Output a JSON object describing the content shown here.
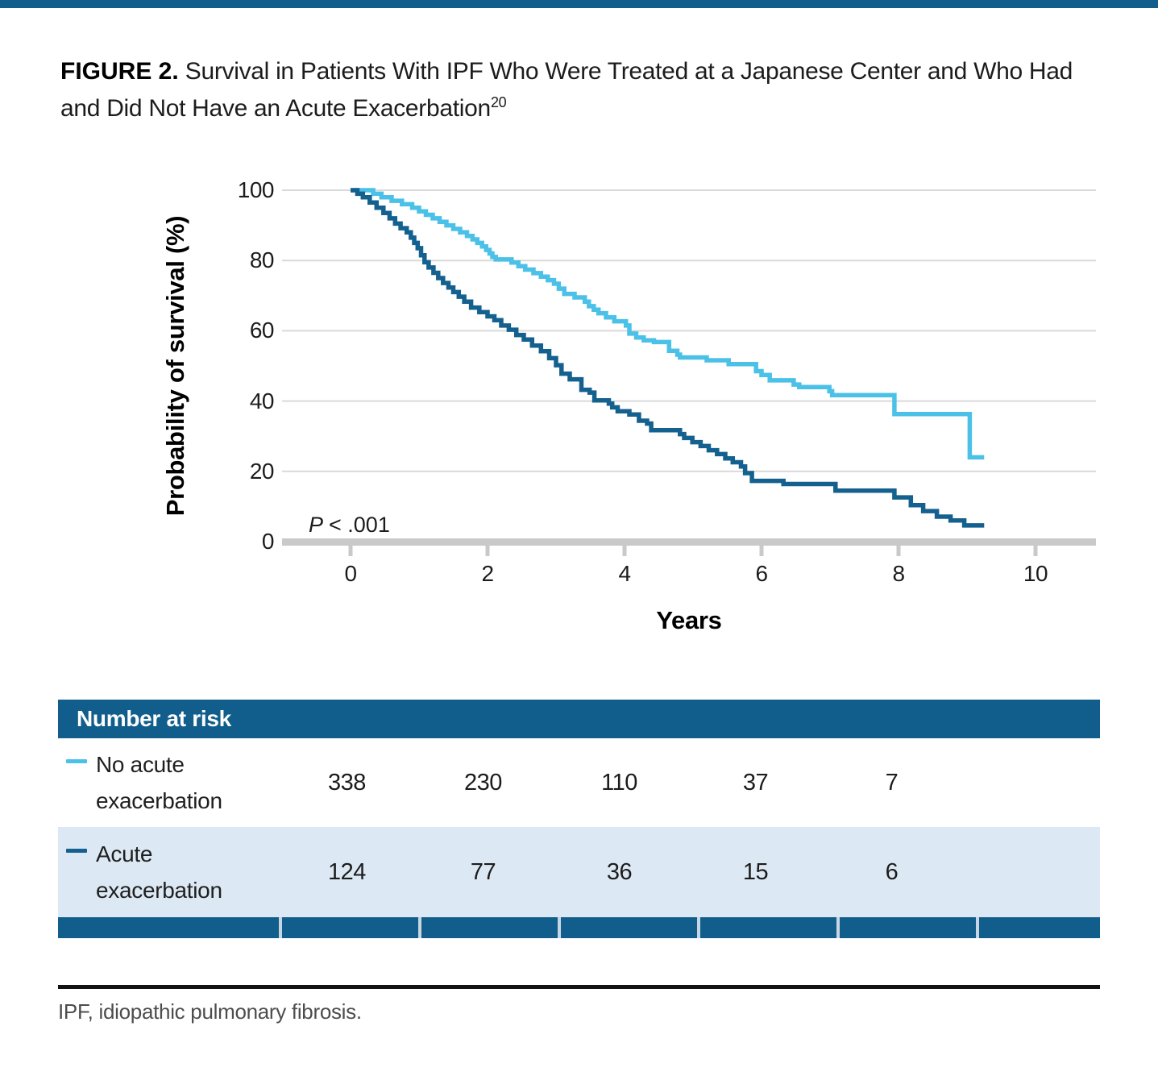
{
  "accent_color": "#115E8C",
  "title": {
    "label": "FIGURE 2.",
    "text": " Survival in Patients With IPF Who Were Treated at a Japanese Center and Who Had and Did Not Have an Acute Exacerbation",
    "reference": "20"
  },
  "chart_data": {
    "type": "line",
    "subtype": "kaplan-meier-step",
    "xlabel": "Years",
    "ylabel": "Probability of survival (%)",
    "xlim": [
      0,
      11
    ],
    "ylim": [
      0,
      100
    ],
    "x_ticks": [
      0,
      2,
      4,
      6,
      8,
      10
    ],
    "y_ticks": [
      0,
      20,
      40,
      60,
      80,
      100
    ],
    "grid": "horizontal",
    "gridline_color": "#D9D9D9",
    "axis_color": "#C9C9C9",
    "annotation": {
      "p_italic": "P",
      "p_rest": "< .001"
    },
    "series": [
      {
        "name": "No acute exacerbation",
        "color": "#4BC1E8",
        "end": 9.25,
        "steps": [
          [
            0,
            100
          ],
          [
            0.33,
            99
          ],
          [
            0.45,
            98
          ],
          [
            0.6,
            97
          ],
          [
            0.75,
            96
          ],
          [
            0.9,
            95
          ],
          [
            1.0,
            94
          ],
          [
            1.1,
            93
          ],
          [
            1.2,
            92
          ],
          [
            1.3,
            91
          ],
          [
            1.4,
            90
          ],
          [
            1.5,
            89
          ],
          [
            1.6,
            88
          ],
          [
            1.7,
            87
          ],
          [
            1.78,
            86
          ],
          [
            1.85,
            85
          ],
          [
            1.92,
            84
          ],
          [
            1.98,
            83
          ],
          [
            2.03,
            82
          ],
          [
            2.07,
            81
          ],
          [
            2.12,
            80.3
          ],
          [
            2.35,
            79.4
          ],
          [
            2.45,
            78.4
          ],
          [
            2.55,
            77.4
          ],
          [
            2.67,
            76.4
          ],
          [
            2.78,
            75.4
          ],
          [
            2.88,
            74.4
          ],
          [
            2.97,
            73.4
          ],
          [
            3.04,
            72
          ],
          [
            3.12,
            70.5
          ],
          [
            3.27,
            69.5
          ],
          [
            3.42,
            68.3
          ],
          [
            3.48,
            67
          ],
          [
            3.55,
            66
          ],
          [
            3.62,
            65
          ],
          [
            3.73,
            63.8
          ],
          [
            3.85,
            62.7
          ],
          [
            4.02,
            61.5
          ],
          [
            4.07,
            59.2
          ],
          [
            4.17,
            58.1
          ],
          [
            4.28,
            57.3
          ],
          [
            4.43,
            56.8
          ],
          [
            4.65,
            54.3
          ],
          [
            4.77,
            53.2
          ],
          [
            4.81,
            52.4
          ],
          [
            5.2,
            51.6
          ],
          [
            5.52,
            50.5
          ],
          [
            5.92,
            48.5
          ],
          [
            6.0,
            47.4
          ],
          [
            6.12,
            45.9
          ],
          [
            6.47,
            44.7
          ],
          [
            6.55,
            44
          ],
          [
            6.99,
            42.8
          ],
          [
            7.03,
            41.7
          ],
          [
            7.94,
            36.3
          ],
          [
            9.04,
            24
          ]
        ]
      },
      {
        "name": "Acute exacerbation",
        "color": "#14608E",
        "end": 9.25,
        "steps": [
          [
            0,
            100
          ],
          [
            0.1,
            99
          ],
          [
            0.18,
            98
          ],
          [
            0.28,
            96.5
          ],
          [
            0.38,
            95
          ],
          [
            0.48,
            93.5
          ],
          [
            0.57,
            92
          ],
          [
            0.65,
            90.5
          ],
          [
            0.73,
            89.2
          ],
          [
            0.82,
            88
          ],
          [
            0.88,
            86.5
          ],
          [
            0.93,
            85
          ],
          [
            0.98,
            83.5
          ],
          [
            1.03,
            81.5
          ],
          [
            1.08,
            79.5
          ],
          [
            1.14,
            78
          ],
          [
            1.21,
            76.5
          ],
          [
            1.28,
            75
          ],
          [
            1.35,
            73.6
          ],
          [
            1.43,
            72.3
          ],
          [
            1.5,
            71
          ],
          [
            1.58,
            69.7
          ],
          [
            1.66,
            68.3
          ],
          [
            1.76,
            66.6
          ],
          [
            1.88,
            65.3
          ],
          [
            2.0,
            64.1
          ],
          [
            2.1,
            63
          ],
          [
            2.2,
            61.5
          ],
          [
            2.31,
            60.3
          ],
          [
            2.42,
            58.8
          ],
          [
            2.53,
            57.5
          ],
          [
            2.65,
            55.8
          ],
          [
            2.78,
            54.2
          ],
          [
            2.9,
            52.2
          ],
          [
            3.0,
            50.2
          ],
          [
            3.08,
            47.8
          ],
          [
            3.2,
            46.2
          ],
          [
            3.37,
            43.2
          ],
          [
            3.49,
            42.4
          ],
          [
            3.56,
            40.2
          ],
          [
            3.77,
            39.3
          ],
          [
            3.82,
            38.2
          ],
          [
            3.9,
            37.1
          ],
          [
            4.07,
            36.2
          ],
          [
            4.21,
            34.4
          ],
          [
            4.33,
            33.6
          ],
          [
            4.39,
            31.7
          ],
          [
            4.81,
            30.6
          ],
          [
            4.87,
            29.5
          ],
          [
            4.99,
            28.3
          ],
          [
            5.11,
            27.2
          ],
          [
            5.23,
            26
          ],
          [
            5.35,
            24.9
          ],
          [
            5.47,
            23.7
          ],
          [
            5.58,
            22.6
          ],
          [
            5.7,
            21.4
          ],
          [
            5.76,
            19.5
          ],
          [
            5.86,
            17.3
          ],
          [
            6.32,
            16.4
          ],
          [
            7.08,
            14.5
          ],
          [
            7.94,
            12.6
          ],
          [
            8.18,
            10.4
          ],
          [
            8.36,
            8.7
          ],
          [
            8.56,
            7.1
          ],
          [
            8.76,
            6
          ],
          [
            8.96,
            4.6
          ]
        ]
      }
    ]
  },
  "risk_table": {
    "header": "Number at risk",
    "columns_years": [
      0,
      2,
      4,
      6,
      8
    ],
    "rows": [
      {
        "label_line1": "No acute",
        "label_line2": "exacerbation",
        "color": "#4BC1E8",
        "values": [
          "338",
          "230",
          "110",
          "37",
          "7"
        ]
      },
      {
        "label_line1": "Acute",
        "label_line2": "exacerbation",
        "color": "#14608E",
        "values": [
          "124",
          "77",
          "36",
          "15",
          "6"
        ]
      }
    ]
  },
  "footnote": "IPF, idiopathic pulmonary fibrosis."
}
